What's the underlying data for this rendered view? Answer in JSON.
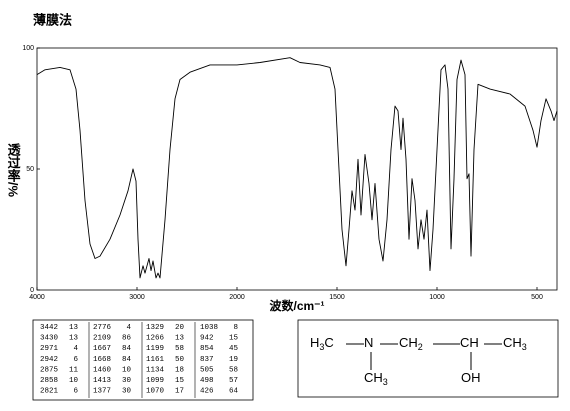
{
  "title": "薄膜法",
  "chart_data": {
    "type": "line",
    "x_label": "波数/cm⁻¹",
    "y_label": "透过率/%",
    "x_scale": "piecewise",
    "xlim": [
      4000,
      400
    ],
    "xticks": [
      4000,
      3000,
      2000,
      1500,
      1000,
      500
    ],
    "ylim": [
      0,
      100
    ],
    "yticks": [
      0,
      50,
      100
    ],
    "series": [
      {
        "name": "spectrum",
        "color": "#000000",
        "x": [
          4000,
          3920,
          3770,
          3670,
          3610,
          3570,
          3520,
          3470,
          3420,
          3370,
          3270,
          3170,
          3090,
          3040,
          3010,
          2990,
          2970,
          2940,
          2920,
          2880,
          2860,
          2840,
          2810,
          2790,
          2770,
          2720,
          2670,
          2620,
          2570,
          2470,
          2270,
          2000,
          1885,
          1735,
          1685,
          1585,
          1535,
          1510,
          1495,
          1475,
          1455,
          1440,
          1425,
          1410,
          1395,
          1380,
          1360,
          1340,
          1325,
          1310,
          1290,
          1270,
          1250,
          1230,
          1210,
          1195,
          1180,
          1170,
          1155,
          1140,
          1125,
          1110,
          1095,
          1080,
          1065,
          1050,
          1035,
          1020,
          1000,
          980,
          960,
          945,
          930,
          915,
          900,
          880,
          860,
          850,
          840,
          830,
          815,
          795,
          735,
          635,
          560,
          520,
          500,
          480,
          455,
          430,
          415,
          400
        ],
        "values": [
          89,
          91,
          92,
          91,
          83,
          66,
          37,
          19,
          13,
          14,
          21,
          31,
          41,
          50,
          45,
          21,
          5,
          10,
          7,
          13,
          8,
          12,
          5,
          7,
          5,
          29,
          58,
          79,
          87,
          90,
          93,
          93,
          94,
          96,
          94,
          93,
          92,
          83,
          58,
          25,
          10,
          25,
          41,
          33,
          54,
          31,
          56,
          44,
          29,
          44,
          21,
          12,
          29,
          58,
          76,
          74,
          58,
          71,
          54,
          21,
          46,
          37,
          17,
          29,
          21,
          33,
          8,
          25,
          58,
          91,
          93,
          83,
          17,
          46,
          87,
          95,
          89,
          46,
          48,
          14,
          58,
          85,
          83,
          81,
          76,
          66,
          59,
          70,
          79,
          74,
          70,
          74
        ]
      }
    ]
  },
  "table": {
    "rows": [
      [
        3442,
        13,
        2776,
        4,
        1329,
        20,
        1038,
        8
      ],
      [
        3430,
        13,
        2109,
        86,
        1266,
        13,
        942,
        15
      ],
      [
        2971,
        4,
        1667,
        84,
        1199,
        58,
        854,
        45
      ],
      [
        2942,
        6,
        1668,
        84,
        1161,
        50,
        837,
        19
      ],
      [
        2875,
        11,
        1460,
        10,
        1134,
        18,
        505,
        58
      ],
      [
        2858,
        10,
        1413,
        30,
        1099,
        15,
        498,
        57
      ],
      [
        2821,
        6,
        1377,
        30,
        1070,
        17,
        426,
        64
      ]
    ]
  },
  "structure": {
    "groups": [
      [
        "H",
        "3",
        "C"
      ],
      [
        "N"
      ],
      [
        "CH",
        "2"
      ],
      [
        "CH"
      ],
      [
        "CH",
        "3"
      ],
      [
        "CH",
        "3"
      ],
      [
        "OH"
      ]
    ]
  }
}
